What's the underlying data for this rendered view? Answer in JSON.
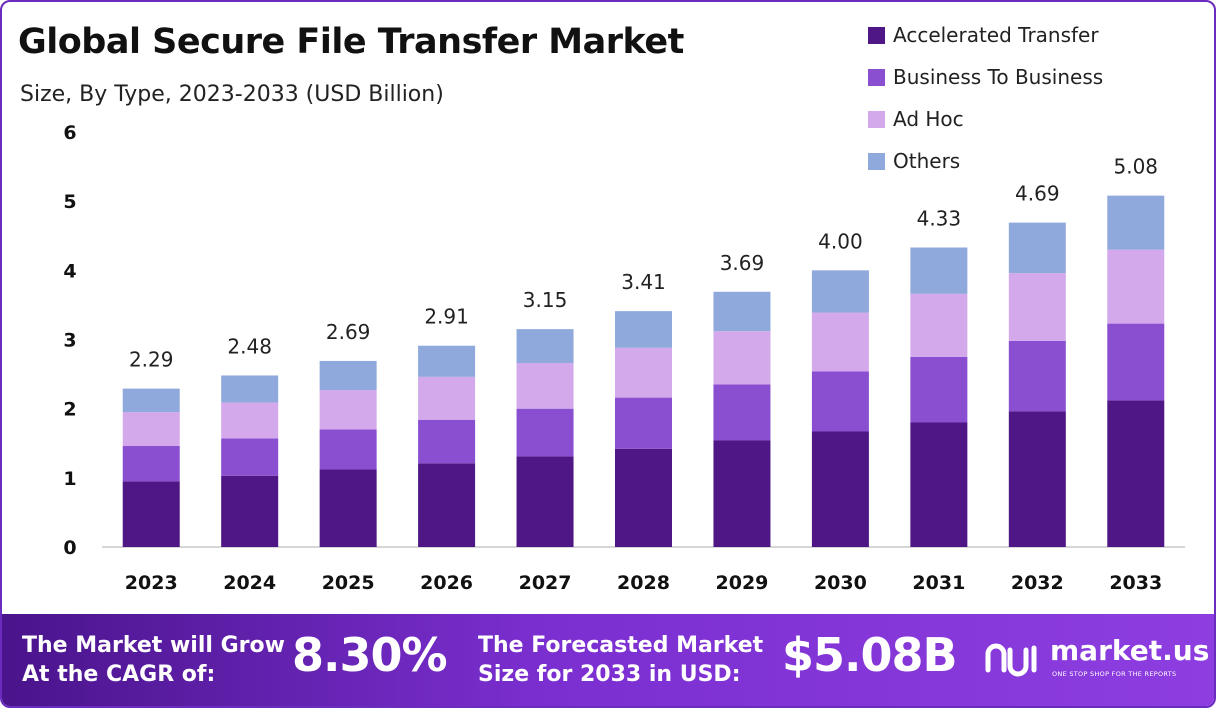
{
  "header": {
    "title": "Global Secure File Transfer Market",
    "subtitle": "Size, By Type, 2023-2033 (USD Billion)"
  },
  "legend": [
    {
      "label": "Accelerated Transfer",
      "color": "#4e1785"
    },
    {
      "label": "Business To Business",
      "color": "#8a4ed0"
    },
    {
      "label": "Ad Hoc",
      "color": "#d3a9ec"
    },
    {
      "label": "Others",
      "color": "#8fa9dc"
    }
  ],
  "chart_data": {
    "type": "bar",
    "stacked": true,
    "categories": [
      "2023",
      "2024",
      "2025",
      "2026",
      "2027",
      "2028",
      "2029",
      "2030",
      "2031",
      "2032",
      "2033"
    ],
    "series": [
      {
        "name": "Accelerated Transfer",
        "color": "#4e1785",
        "values": [
          0.95,
          1.03,
          1.12,
          1.21,
          1.31,
          1.42,
          1.54,
          1.67,
          1.8,
          1.96,
          2.12
        ]
      },
      {
        "name": "Business To Business",
        "color": "#8a4ed0",
        "values": [
          0.51,
          0.54,
          0.58,
          0.63,
          0.69,
          0.74,
          0.81,
          0.87,
          0.95,
          1.02,
          1.11
        ]
      },
      {
        "name": "Ad Hoc",
        "color": "#d3a9ec",
        "values": [
          0.49,
          0.52,
          0.57,
          0.62,
          0.66,
          0.72,
          0.77,
          0.85,
          0.91,
          0.98,
          1.07
        ]
      },
      {
        "name": "Others",
        "color": "#8fa9dc",
        "values": [
          0.34,
          0.39,
          0.42,
          0.45,
          0.49,
          0.53,
          0.57,
          0.61,
          0.67,
          0.73,
          0.78
        ]
      }
    ],
    "totals": [
      "2.29",
      "2.48",
      "2.69",
      "2.91",
      "3.15",
      "3.41",
      "3.69",
      "4.00",
      "4.33",
      "4.69",
      "5.08"
    ],
    "y_ticks": [
      "0",
      "1",
      "2",
      "3",
      "4",
      "5",
      "6"
    ],
    "ylim": [
      0,
      6
    ],
    "grid": false,
    "legend_position": "top-right"
  },
  "footer": {
    "cagr_label_line1": "The Market will Grow",
    "cagr_label_line2": "At the CAGR of:",
    "cagr_value": "8.30%",
    "forecast_label_line1": "The Forecasted Market",
    "forecast_label_line2": "Size for 2033 in USD:",
    "forecast_value": "$5.08B",
    "brand_name": "market.us",
    "brand_tagline": "ONE STOP SHOP FOR THE REPORTS",
    "brand_icon": "market-us-logo-icon"
  }
}
